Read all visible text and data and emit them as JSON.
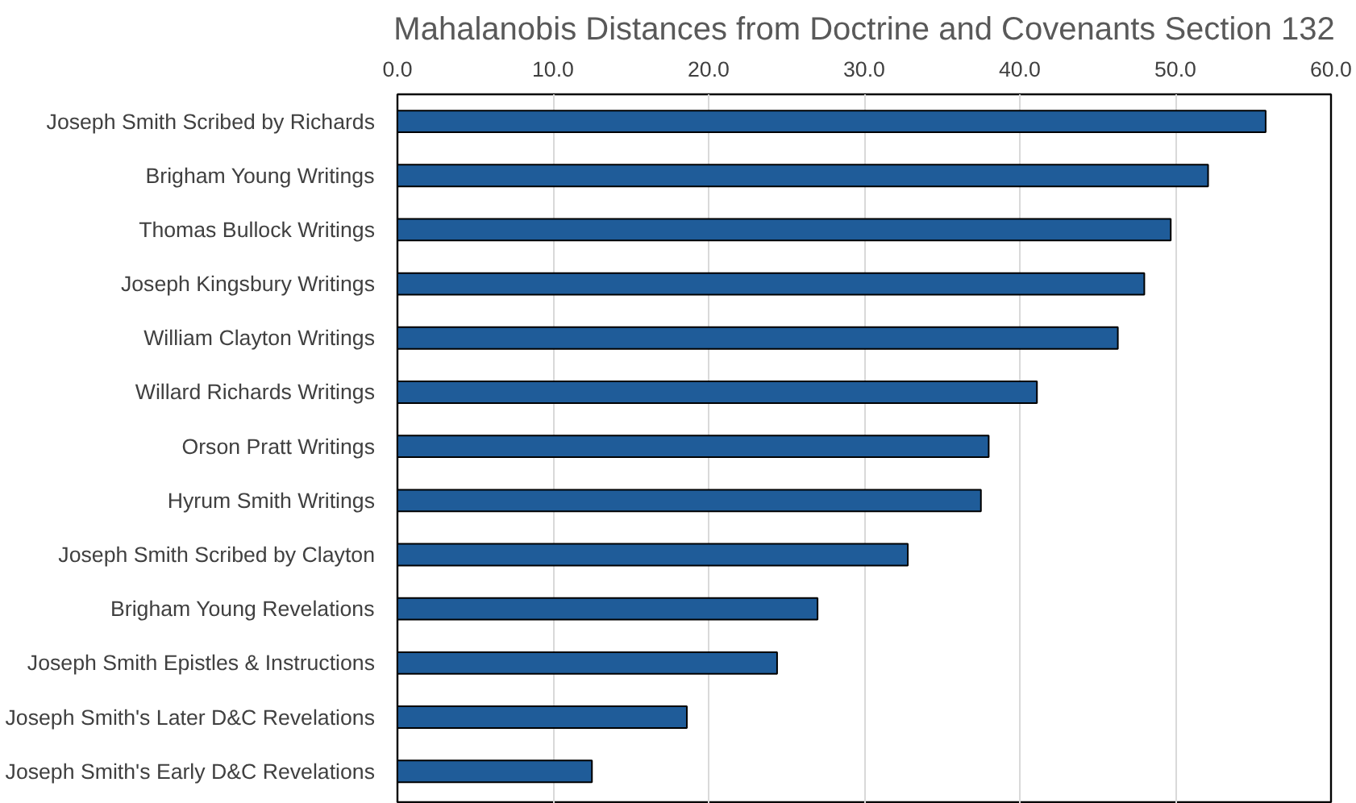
{
  "chart_data": {
    "type": "bar",
    "orientation": "horizontal",
    "title": "Mahalanobis Distances from Doctrine and Covenants Section 132",
    "categories": [
      "Joseph Smith Scribed by Richards",
      "Brigham Young Writings",
      "Thomas Bullock Writings",
      "Joseph Kingsbury Writings",
      "William Clayton Writings",
      "Willard Richards Writings",
      "Orson Pratt Writings",
      "Hyrum Smith Writings",
      "Joseph Smith Scribed by Clayton",
      "Brigham Young Revelations",
      "Joseph Smith Epistles & Instructions",
      "Joseph Smith's Later D&C Revelations",
      "Joseph Smith's Early D&C Revelations"
    ],
    "values": [
      55.8,
      52.1,
      49.7,
      48.0,
      46.3,
      41.1,
      38.0,
      37.5,
      32.8,
      27.0,
      24.4,
      18.6,
      12.5
    ],
    "color": "#1f5c99",
    "xlim": [
      0,
      60
    ],
    "xticks": [
      {
        "value": 0,
        "label": "0.0"
      },
      {
        "value": 10,
        "label": "10.0"
      },
      {
        "value": 20,
        "label": "20.0"
      },
      {
        "value": 30,
        "label": "30.0"
      },
      {
        "value": 40,
        "label": "40.0"
      },
      {
        "value": 50,
        "label": "50.0"
      },
      {
        "value": 60,
        "label": "60.0"
      }
    ],
    "grid": "x"
  }
}
